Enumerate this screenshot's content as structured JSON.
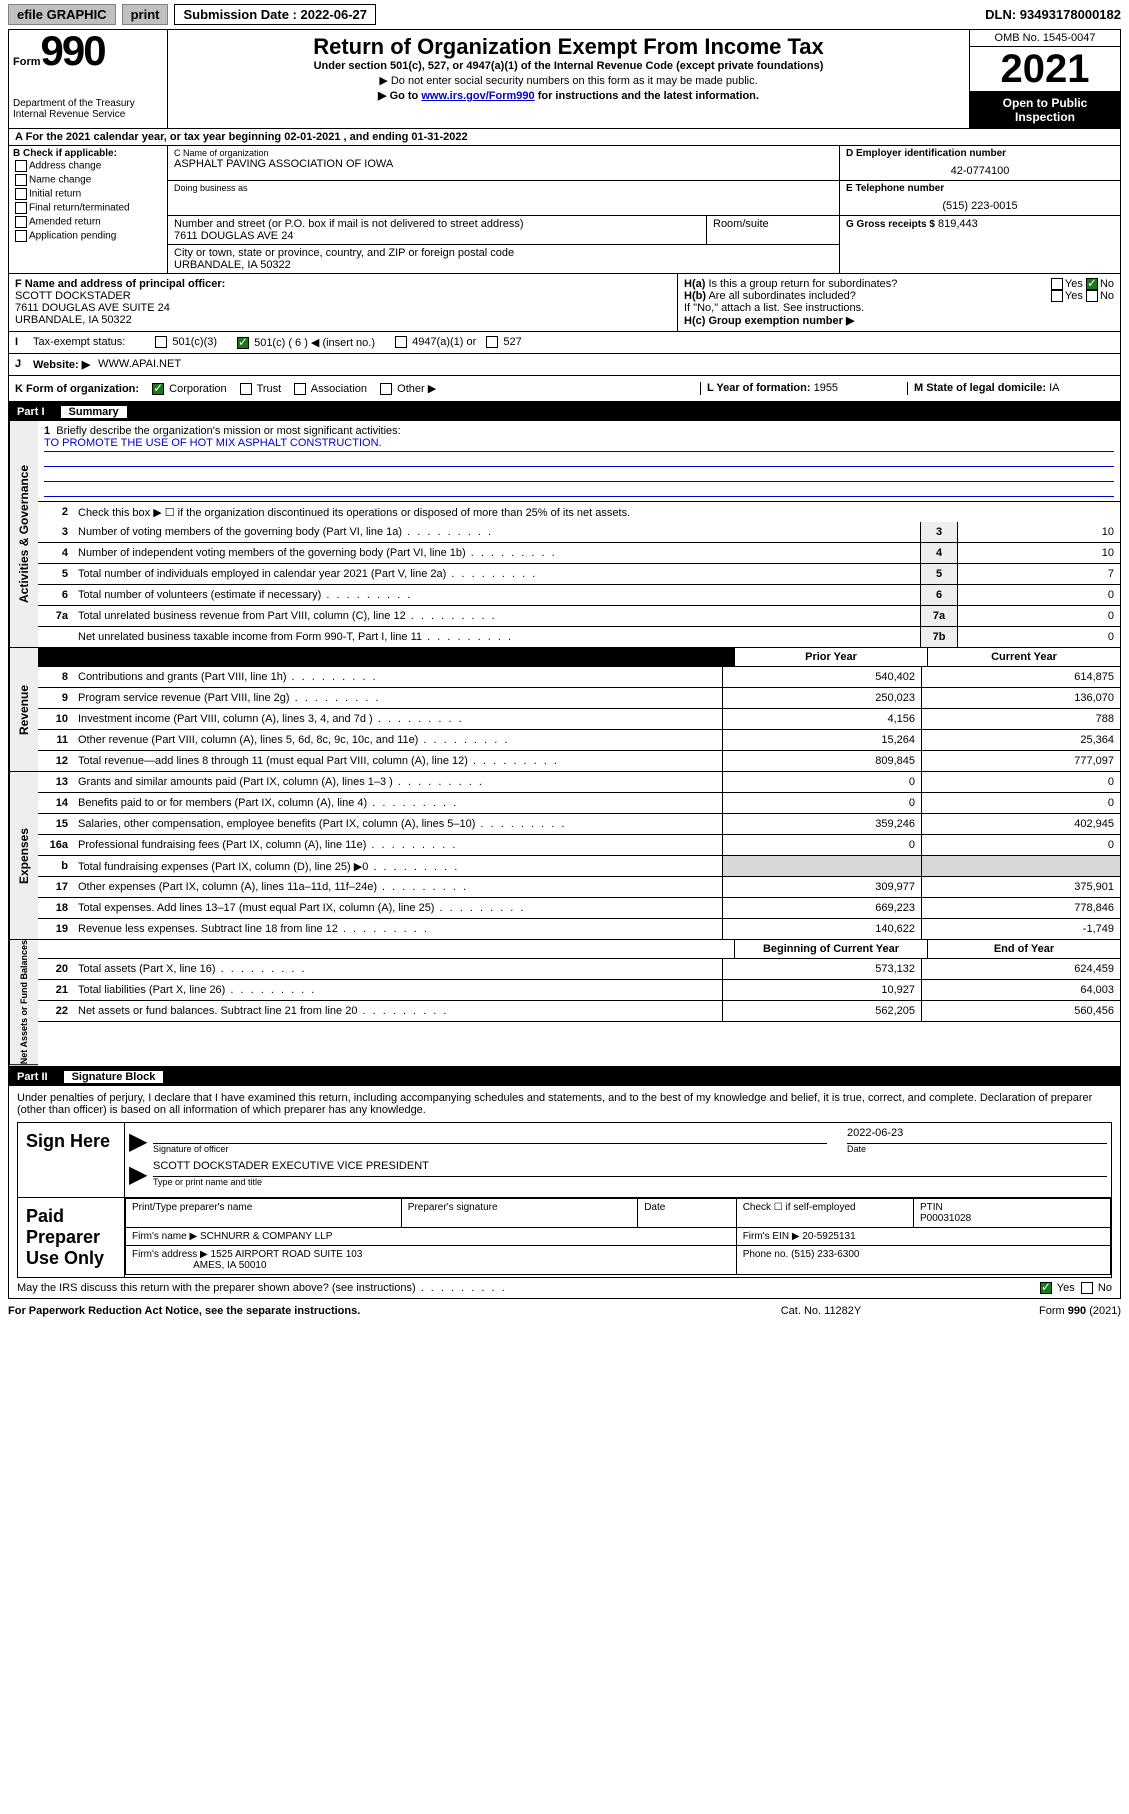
{
  "topbar": {
    "efile": "efile GRAPHIC",
    "print": "print",
    "submission_label": "Submission Date : 2022-06-27",
    "dln": "DLN: 93493178000182"
  },
  "header": {
    "form_word": "Form",
    "form_num": "990",
    "dept": "Department of the Treasury",
    "irs": "Internal Revenue Service",
    "title": "Return of Organization Exempt From Income Tax",
    "sub": "Under section 501(c), 527, or 4947(a)(1) of the Internal Revenue Code (except private foundations)",
    "note1": "▶ Do not enter social security numbers on this form as it may be made public.",
    "note2_pre": "▶ Go to ",
    "note2_link": "www.irs.gov/Form990",
    "note2_post": " for instructions and the latest information.",
    "omb": "OMB No. 1545-0047",
    "year": "2021",
    "inspect1": "Open to Public",
    "inspect2": "Inspection"
  },
  "sectionA": {
    "taxyear": "For the 2021 calendar year, or tax year beginning 02-01-2021   , and ending 01-31-2022",
    "B_label": "B Check if applicable:",
    "b_opts": [
      "Address change",
      "Name change",
      "Initial return",
      "Final return/terminated",
      "Amended return",
      "Application pending"
    ],
    "C_name_lbl": "C Name of organization",
    "C_name": "ASPHALT PAVING ASSOCIATION OF IOWA",
    "dba_lbl": "Doing business as",
    "addr_lbl": "Number and street (or P.O. box if mail is not delivered to street address)",
    "room_lbl": "Room/suite",
    "addr": "7611 DOUGLAS AVE 24",
    "city_lbl": "City or town, state or province, country, and ZIP or foreign postal code",
    "city": "URBANDALE, IA  50322",
    "D_lbl": "D Employer identification number",
    "D_val": "42-0774100",
    "E_lbl": "E Telephone number",
    "E_val": "(515) 223-0015",
    "G_lbl": "G Gross receipts $",
    "G_val": "819,443",
    "F_lbl": "F  Name and address of principal officer:",
    "F_name": "SCOTT DOCKSTADER",
    "F_addr1": "7611 DOUGLAS AVE SUITE 24",
    "F_addr2": "URBANDALE, IA  50322",
    "Ha_lbl": "H(a)  Is this a group return for subordinates?",
    "Hb_lbl": "H(b)  Are all subordinates included?",
    "H_note": "If \"No,\" attach a list. See instructions.",
    "Hc_lbl": "H(c)  Group exemption number ▶",
    "yes": "Yes",
    "no": "No",
    "I_lbl": "Tax-exempt status:",
    "I_501c3": "501(c)(3)",
    "I_501c": "501(c) ( 6 ) ◀ (insert no.)",
    "I_4947": "4947(a)(1) or",
    "I_527": "527",
    "J_lbl": "Website: ▶",
    "J_val": "WWW.APAI.NET",
    "K_lbl": "K Form of organization:",
    "K_corp": "Corporation",
    "K_trust": "Trust",
    "K_assoc": "Association",
    "K_other": "Other ▶",
    "L_lbl": "L Year of formation:",
    "L_val": "1955",
    "M_lbl": "M State of legal domicile:",
    "M_val": "IA"
  },
  "part1": {
    "label": "Part I",
    "title": "Summary",
    "line1_lbl": "Briefly describe the organization's mission or most significant activities:",
    "line1_val": "TO PROMOTE THE USE OF HOT MIX ASPHALT CONSTRUCTION.",
    "line2": "Check this box ▶ ☐  if the organization discontinued its operations or disposed of more than 25% of its net assets.",
    "sections": {
      "governance": "Activities & Governance",
      "revenue": "Revenue",
      "expenses": "Expenses",
      "netassets": "Net Assets or Fund Balances"
    },
    "gov_lines": [
      {
        "n": "3",
        "d": "Number of voting members of the governing body (Part VI, line 1a)",
        "box": "3",
        "v": "10"
      },
      {
        "n": "4",
        "d": "Number of independent voting members of the governing body (Part VI, line 1b)",
        "box": "4",
        "v": "10"
      },
      {
        "n": "5",
        "d": "Total number of individuals employed in calendar year 2021 (Part V, line 2a)",
        "box": "5",
        "v": "7"
      },
      {
        "n": "6",
        "d": "Total number of volunteers (estimate if necessary)",
        "box": "6",
        "v": "0"
      },
      {
        "n": "7a",
        "d": "Total unrelated business revenue from Part VIII, column (C), line 12",
        "box": "7a",
        "v": "0"
      },
      {
        "n": "",
        "d": "Net unrelated business taxable income from Form 990-T, Part I, line 11",
        "box": "7b",
        "v": "0"
      }
    ],
    "hdr_prior": "Prior Year",
    "hdr_current": "Current Year",
    "rev_lines": [
      {
        "n": "8",
        "d": "Contributions and grants (Part VIII, line 1h)",
        "p": "540,402",
        "c": "614,875"
      },
      {
        "n": "9",
        "d": "Program service revenue (Part VIII, line 2g)",
        "p": "250,023",
        "c": "136,070"
      },
      {
        "n": "10",
        "d": "Investment income (Part VIII, column (A), lines 3, 4, and 7d )",
        "p": "4,156",
        "c": "788"
      },
      {
        "n": "11",
        "d": "Other revenue (Part VIII, column (A), lines 5, 6d, 8c, 9c, 10c, and 11e)",
        "p": "15,264",
        "c": "25,364"
      },
      {
        "n": "12",
        "d": "Total revenue—add lines 8 through 11 (must equal Part VIII, column (A), line 12)",
        "p": "809,845",
        "c": "777,097"
      }
    ],
    "exp_lines": [
      {
        "n": "13",
        "d": "Grants and similar amounts paid (Part IX, column (A), lines 1–3 )",
        "p": "0",
        "c": "0"
      },
      {
        "n": "14",
        "d": "Benefits paid to or for members (Part IX, column (A), line 4)",
        "p": "0",
        "c": "0"
      },
      {
        "n": "15",
        "d": "Salaries, other compensation, employee benefits (Part IX, column (A), lines 5–10)",
        "p": "359,246",
        "c": "402,945"
      },
      {
        "n": "16a",
        "d": "Professional fundraising fees (Part IX, column (A), line 11e)",
        "p": "0",
        "c": "0"
      },
      {
        "n": "b",
        "d": "Total fundraising expenses (Part IX, column (D), line 25) ▶0",
        "p": "",
        "c": "",
        "grey": true
      },
      {
        "n": "17",
        "d": "Other expenses (Part IX, column (A), lines 11a–11d, 11f–24e)",
        "p": "309,977",
        "c": "375,901"
      },
      {
        "n": "18",
        "d": "Total expenses. Add lines 13–17 (must equal Part IX, column (A), line 25)",
        "p": "669,223",
        "c": "778,846"
      },
      {
        "n": "19",
        "d": "Revenue less expenses. Subtract line 18 from line 12",
        "p": "140,622",
        "c": "-1,749"
      }
    ],
    "hdr_begin": "Beginning of Current Year",
    "hdr_end": "End of Year",
    "net_lines": [
      {
        "n": "20",
        "d": "Total assets (Part X, line 16)",
        "p": "573,132",
        "c": "624,459"
      },
      {
        "n": "21",
        "d": "Total liabilities (Part X, line 26)",
        "p": "10,927",
        "c": "64,003"
      },
      {
        "n": "22",
        "d": "Net assets or fund balances. Subtract line 21 from line 20",
        "p": "562,205",
        "c": "560,456"
      }
    ]
  },
  "part2": {
    "label": "Part II",
    "title": "Signature Block",
    "penalty": "Under penalties of perjury, I declare that I have examined this return, including accompanying schedules and statements, and to the best of my knowledge and belief, it is true, correct, and complete. Declaration of preparer (other than officer) is based on all information of which preparer has any knowledge.",
    "sign_here": "Sign Here",
    "sig_officer_lbl": "Signature of officer",
    "sig_date": "2022-06-23",
    "date_lbl": "Date",
    "officer_name": "SCOTT DOCKSTADER  EXECUTIVE VICE PRESIDENT",
    "name_title_lbl": "Type or print name and title",
    "paid_lbl": "Paid Preparer Use Only",
    "prep_name_lbl": "Print/Type preparer's name",
    "prep_sig_lbl": "Preparer's signature",
    "prep_date_lbl": "Date",
    "check_if": "Check ☐ if self-employed",
    "ptin_lbl": "PTIN",
    "ptin": "P00031028",
    "firm_name_lbl": "Firm's name   ▶",
    "firm_name": "SCHNURR & COMPANY LLP",
    "firm_ein_lbl": "Firm's EIN ▶",
    "firm_ein": "20-5925131",
    "firm_addr_lbl": "Firm's address ▶",
    "firm_addr1": "1525 AIRPORT ROAD SUITE 103",
    "firm_addr2": "AMES, IA  50010",
    "phone_lbl": "Phone no.",
    "phone": "(515) 233-6300",
    "may_irs": "May the IRS discuss this return with the preparer shown above? (see instructions)"
  },
  "footer": {
    "l": "For Paperwork Reduction Act Notice, see the separate instructions.",
    "c": "Cat. No. 11282Y",
    "r": "Form 990 (2021)"
  }
}
